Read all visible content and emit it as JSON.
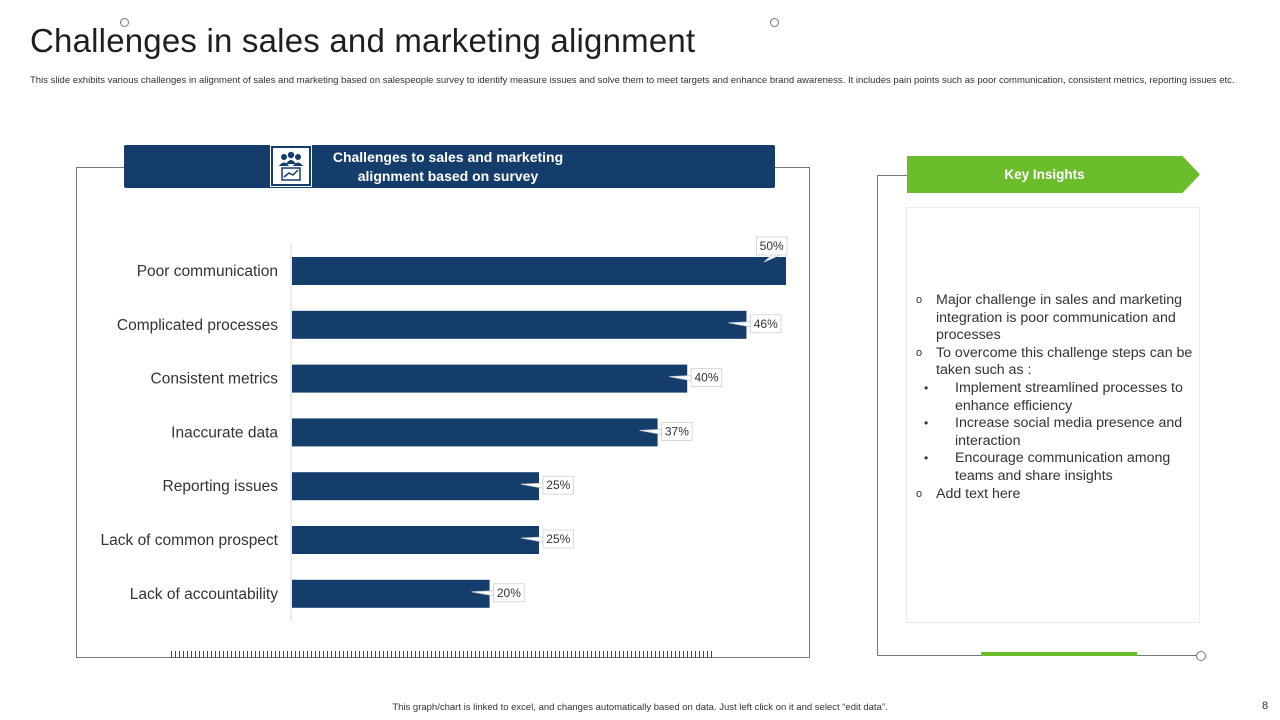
{
  "title": "Challenges in sales and marketing alignment",
  "subtitle": "This slide exhibits various challenges in alignment of sales and marketing based on salespeople survey to identify measure issues and solve them to meet targets and enhance brand awareness. It includes pain points such as poor communication, consistent metrics, reporting issues etc.",
  "chart_header": {
    "line1": "Challenges to sales and marketing",
    "line2": "alignment based on survey",
    "icon": "team-chart-icon"
  },
  "chart_data": {
    "type": "bar",
    "orientation": "horizontal",
    "title": "Challenges to sales and marketing alignment based on survey",
    "categories": [
      "Poor communication",
      "Complicated processes",
      "Consistent metrics",
      "Inaccurate data",
      "Reporting issues",
      "Lack of common prospect",
      "Lack of accountability"
    ],
    "values": [
      50,
      46,
      40,
      37,
      25,
      25,
      20
    ],
    "data_labels": [
      "50%",
      "46%",
      "40%",
      "37%",
      "25%",
      "25%",
      "20%"
    ],
    "xlim": [
      0,
      50
    ],
    "unit": "%",
    "bar_color": "#153d6b",
    "grid": false
  },
  "insights": {
    "heading": "Key Insights",
    "items": [
      {
        "level": 1,
        "text": "Major challenge in sales and marketing integration is poor communication and processes"
      },
      {
        "level": 1,
        "text": "To overcome this challenge steps can be taken such as :"
      },
      {
        "level": 2,
        "text": "Implement streamlined processes to enhance efficiency"
      },
      {
        "level": 2,
        "text": "Increase social media presence and interaction"
      },
      {
        "level": 2,
        "text": "Encourage communication among teams and share insights"
      },
      {
        "level": 1,
        "text": "Add text here"
      }
    ]
  },
  "footer": "This graph/chart is linked to excel, and changes automatically based on data. Just left click on it and select “edit data”.",
  "page_number": "8",
  "colors": {
    "navy": "#153d6b",
    "green": "#6cbd2b"
  }
}
